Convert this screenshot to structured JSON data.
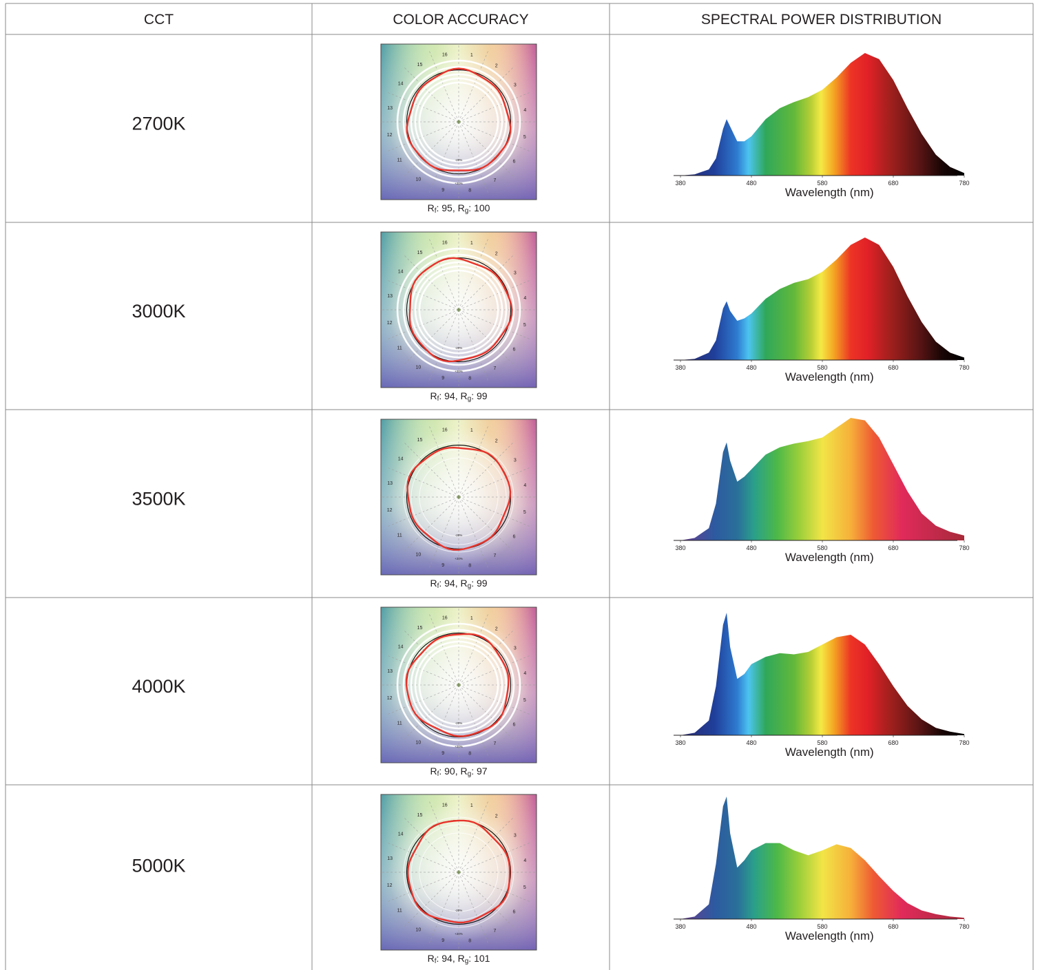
{
  "table": {
    "headers": [
      "CCT",
      "COLOR ACCURACY",
      "SPECTRAL POWER DISTRIBUTION"
    ],
    "rows": [
      {
        "cct": "2700K",
        "metrics": {
          "rf_symbol": "R",
          "rf_sub": "f",
          "rf_value": "95",
          "rg_symbol": "R",
          "rg_sub": "g",
          "rg_value": "100"
        },
        "rings": "bold",
        "fill_style": "dark",
        "spd": {
          "x": [
            380,
            400,
            420,
            430,
            440,
            445,
            450,
            460,
            470,
            480,
            500,
            520,
            540,
            560,
            580,
            600,
            620,
            640,
            660,
            680,
            700,
            720,
            740,
            760,
            780
          ],
          "y": [
            0.0,
            0.01,
            0.05,
            0.14,
            0.38,
            0.46,
            0.4,
            0.28,
            0.28,
            0.32,
            0.46,
            0.55,
            0.6,
            0.64,
            0.7,
            0.8,
            0.92,
            1.0,
            0.95,
            0.78,
            0.55,
            0.34,
            0.17,
            0.07,
            0.02
          ]
        }
      },
      {
        "cct": "3000K",
        "metrics": {
          "rf_symbol": "R",
          "rf_sub": "f",
          "rf_value": "94",
          "rg_symbol": "R",
          "rg_sub": "g",
          "rg_value": "99"
        },
        "rings": "bold",
        "fill_style": "dark",
        "spd": {
          "x": [
            380,
            400,
            420,
            430,
            440,
            445,
            450,
            460,
            470,
            480,
            500,
            520,
            540,
            560,
            580,
            600,
            620,
            640,
            660,
            680,
            700,
            720,
            740,
            760,
            780
          ],
          "y": [
            0.0,
            0.01,
            0.06,
            0.16,
            0.42,
            0.48,
            0.4,
            0.32,
            0.34,
            0.38,
            0.5,
            0.58,
            0.63,
            0.66,
            0.72,
            0.82,
            0.94,
            1.0,
            0.94,
            0.76,
            0.52,
            0.31,
            0.15,
            0.06,
            0.02
          ]
        }
      },
      {
        "cct": "3500K",
        "metrics": {
          "rf_symbol": "R",
          "rf_sub": "f",
          "rf_value": "94",
          "rg_symbol": "R",
          "rg_sub": "g",
          "rg_value": "99"
        },
        "rings": "thin",
        "fill_style": "light",
        "spd": {
          "x": [
            380,
            400,
            420,
            430,
            440,
            445,
            450,
            460,
            470,
            480,
            500,
            520,
            540,
            560,
            580,
            600,
            620,
            640,
            660,
            680,
            700,
            720,
            740,
            760,
            780
          ],
          "y": [
            0.0,
            0.02,
            0.1,
            0.3,
            0.72,
            0.8,
            0.65,
            0.48,
            0.52,
            0.58,
            0.7,
            0.76,
            0.79,
            0.81,
            0.84,
            0.92,
            1.0,
            0.98,
            0.84,
            0.62,
            0.4,
            0.22,
            0.12,
            0.07,
            0.04
          ]
        }
      },
      {
        "cct": "4000K",
        "metrics": {
          "rf_symbol": "R",
          "rf_sub": "f",
          "rf_value": "90",
          "rg_symbol": "R",
          "rg_sub": "g",
          "rg_value": "97"
        },
        "rings": "bold",
        "fill_style": "dark",
        "spd": {
          "x": [
            380,
            400,
            420,
            430,
            440,
            445,
            450,
            460,
            470,
            480,
            500,
            520,
            540,
            560,
            580,
            600,
            620,
            640,
            660,
            680,
            700,
            720,
            740,
            760,
            780
          ],
          "y": [
            0.0,
            0.02,
            0.12,
            0.4,
            0.9,
            1.0,
            0.72,
            0.46,
            0.5,
            0.58,
            0.64,
            0.67,
            0.66,
            0.68,
            0.74,
            0.8,
            0.82,
            0.74,
            0.58,
            0.4,
            0.24,
            0.13,
            0.06,
            0.03,
            0.01
          ]
        }
      },
      {
        "cct": "5000K",
        "metrics": {
          "rf_symbol": "R",
          "rf_sub": "f",
          "rf_value": "94",
          "rg_symbol": "R",
          "rg_sub": "g",
          "rg_value": "101"
        },
        "rings": "thin",
        "fill_style": "light",
        "spd": {
          "x": [
            380,
            400,
            420,
            430,
            440,
            445,
            450,
            460,
            470,
            480,
            500,
            520,
            540,
            560,
            580,
            600,
            620,
            640,
            660,
            680,
            700,
            720,
            740,
            760,
            780
          ],
          "y": [
            0.0,
            0.02,
            0.12,
            0.45,
            0.92,
            1.0,
            0.7,
            0.42,
            0.48,
            0.56,
            0.62,
            0.62,
            0.56,
            0.52,
            0.56,
            0.61,
            0.58,
            0.48,
            0.35,
            0.23,
            0.13,
            0.07,
            0.04,
            0.02,
            0.01
          ]
        }
      }
    ]
  },
  "spd_axis": {
    "xlabel": "Wavelength (nm)",
    "ticks": [
      "380",
      "480",
      "580",
      "680",
      "780"
    ],
    "xlim": [
      380,
      780
    ]
  },
  "vector_graph": {
    "hue_bins": [
      "1",
      "2",
      "3",
      "4",
      "5",
      "6",
      "7",
      "8",
      "9",
      "10",
      "11",
      "12",
      "13",
      "14",
      "15",
      "16"
    ],
    "ring_labels": [
      "-20%",
      "+20%"
    ],
    "line_colors": {
      "reference": "#111111",
      "test": "#e8332a"
    }
  }
}
